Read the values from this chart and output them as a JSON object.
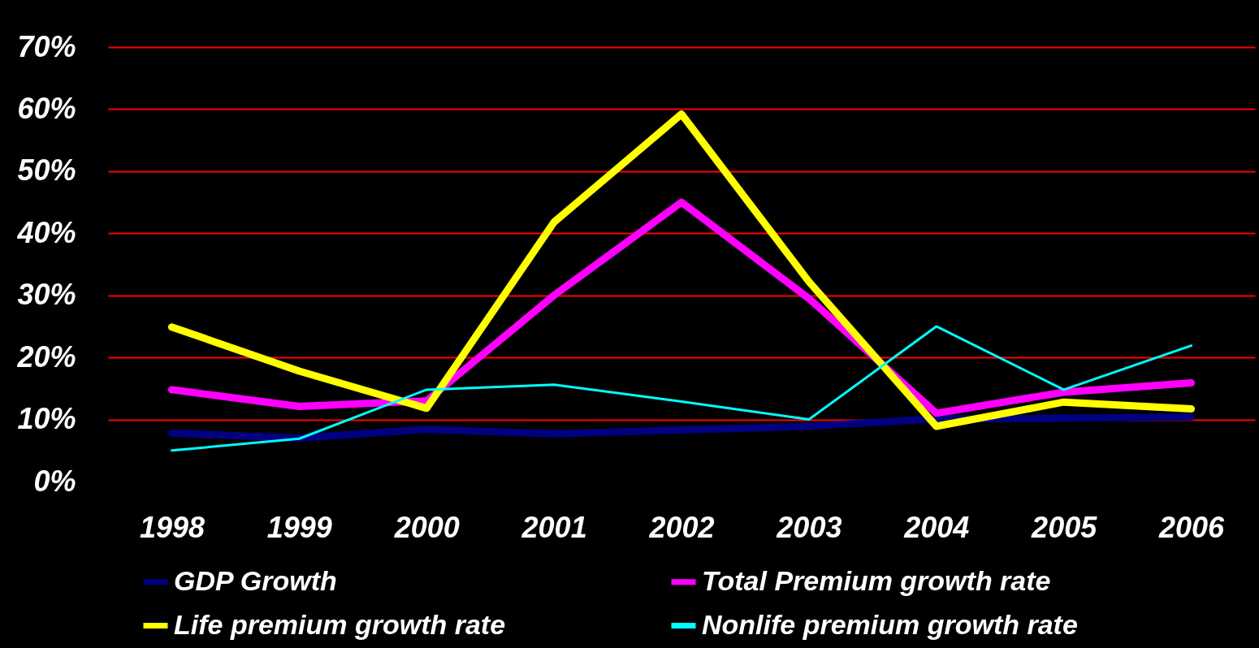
{
  "chart_data": {
    "type": "line",
    "categories": [
      "1998",
      "1999",
      "2000",
      "2001",
      "2002",
      "2003",
      "2004",
      "2005",
      "2006"
    ],
    "series": [
      {
        "name": "GDP Growth",
        "color": "#000080",
        "values": [
          7.8,
          7.0,
          8.4,
          7.7,
          8.3,
          8.9,
          10.1,
          10.2,
          10.4
        ]
      },
      {
        "name": "Total Premium growth rate",
        "color": "#ff00ff",
        "values": [
          14.8,
          12.1,
          13.0,
          30,
          45,
          29.5,
          11,
          14.4,
          15.9
        ]
      },
      {
        "name": "Life premium growth rate",
        "color": "#ffff00",
        "values": [
          24.9,
          17.8,
          11.8,
          41.8,
          59.2,
          32.2,
          8.9,
          12.8,
          11.7
        ]
      },
      {
        "name": "Nonlife premium growth rate",
        "color": "#00ffff",
        "values": [
          5.0,
          6.9,
          14.8,
          15.6,
          12.9,
          10,
          25,
          14.8,
          21.9
        ]
      }
    ],
    "ylim": [
      0,
      70
    ],
    "yticks": [
      {
        "value": 0,
        "label": "0%"
      },
      {
        "value": 10,
        "label": "10%"
      },
      {
        "value": 20,
        "label": "20%"
      },
      {
        "value": 30,
        "label": "30%"
      },
      {
        "value": 40,
        "label": "40%"
      },
      {
        "value": 50,
        "label": "50%"
      },
      {
        "value": 60,
        "label": "60%"
      },
      {
        "value": 70,
        "label": "70%"
      }
    ],
    "grid": "y",
    "legend": "bottom",
    "marker": "none",
    "line_style": "solid"
  }
}
